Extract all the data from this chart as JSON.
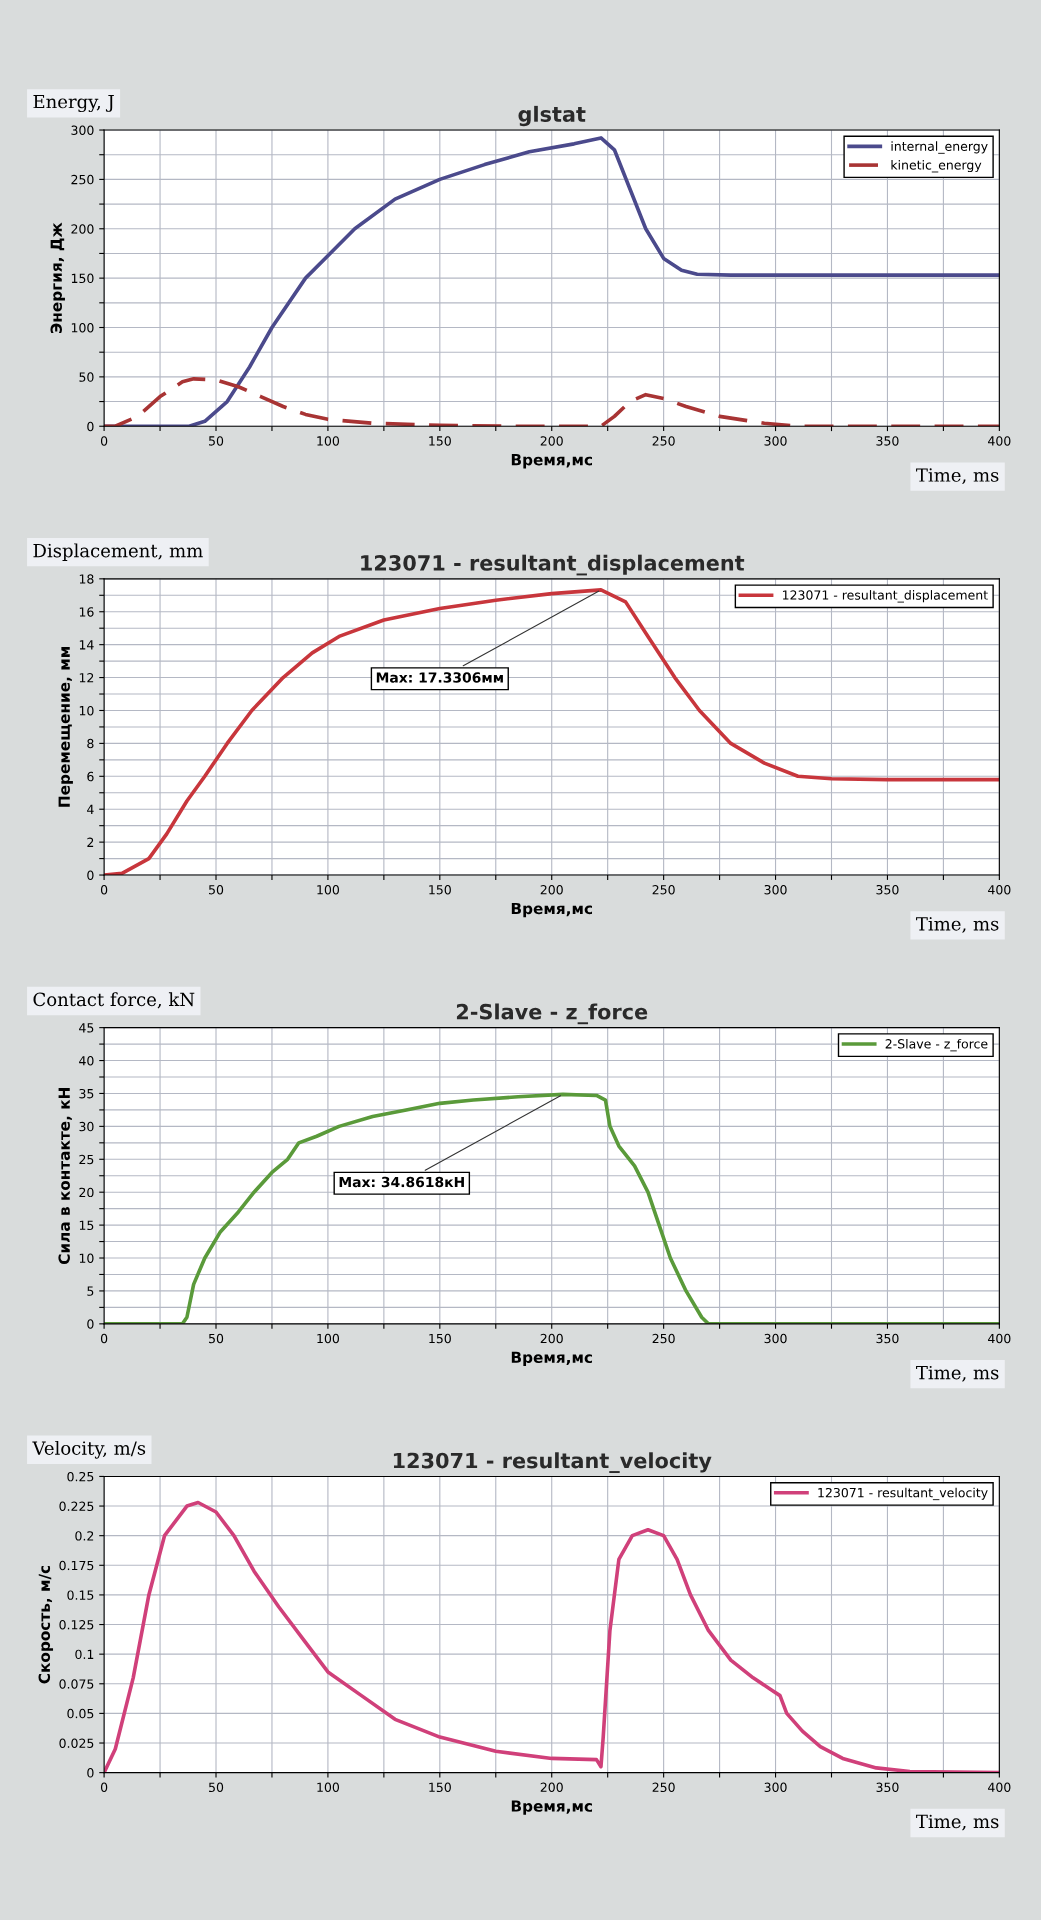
{
  "chart_data": [
    {
      "type": "line",
      "title": "glstat",
      "xlabel": "Время,мс",
      "ylabel": "Энергия, Дж",
      "annotations": [
        "Energy, J",
        "Time, ms"
      ],
      "x": [
        0,
        20,
        35,
        38,
        45,
        55,
        65,
        75,
        90,
        112,
        130,
        150,
        170,
        190,
        210,
        222,
        228,
        235,
        242,
        250,
        258,
        265,
        280,
        400
      ],
      "series": [
        {
          "name": "internal_energy",
          "color": "#4b4a8c",
          "line_style": "solid",
          "values": [
            0,
            0,
            0,
            0,
            5,
            25,
            60,
            100,
            150,
            200,
            230,
            250,
            265,
            278,
            286,
            292,
            280,
            240,
            200,
            170,
            158,
            154,
            153,
            153
          ]
        },
        {
          "name": "kinetic_energy",
          "color": "#a83434",
          "line_style": "dashed",
          "x": [
            0,
            5,
            15,
            25,
            35,
            40,
            50,
            60,
            70,
            80,
            90,
            100,
            120,
            150,
            180,
            222,
            228,
            235,
            242,
            250,
            260,
            275,
            295,
            310,
            400
          ],
          "values": [
            0,
            0,
            10,
            30,
            45,
            48,
            47,
            40,
            30,
            20,
            12,
            7,
            3,
            1,
            0,
            0,
            10,
            25,
            32,
            28,
            20,
            10,
            3,
            0,
            0
          ]
        }
      ],
      "xlim": [
        0,
        400
      ],
      "ylim": [
        0,
        300
      ],
      "xticks": [
        0,
        {
          "value": 25,
          "label": null
        },
        50,
        {
          "value": 75,
          "label": null
        },
        100,
        {
          "value": 125,
          "label": null
        },
        150,
        {
          "value": 175,
          "label": null
        },
        200,
        {
          "value": 225,
          "label": null
        },
        250,
        {
          "value": 275,
          "label": null
        },
        300,
        {
          "value": 325,
          "label": null
        },
        350,
        {
          "value": 375,
          "label": null
        },
        400
      ],
      "yticks": [
        0,
        {
          "value": 25,
          "label": null
        },
        50,
        {
          "value": 75,
          "label": null
        },
        100,
        {
          "value": 125,
          "label": null
        },
        150,
        {
          "value": 175,
          "label": null
        },
        200,
        {
          "value": 225,
          "label": null
        },
        250,
        {
          "value": 275,
          "label": null
        },
        300
      ],
      "grid": true,
      "legend": "top right"
    },
    {
      "type": "line",
      "title": "123071 - resultant_displacement",
      "xlabel": "Время,мс",
      "ylabel": "Перемещение, мм",
      "annotations": [
        "Displacement, mm",
        "Time, ms",
        {
          "text": "Max: 17.3306мм",
          "x": 222,
          "y": 17.3306
        }
      ],
      "x": [
        0,
        8,
        20,
        28,
        37,
        45,
        55,
        66,
        80,
        93,
        105,
        125,
        150,
        175,
        200,
        222,
        233,
        243,
        255,
        266,
        280,
        295,
        310,
        325,
        350,
        400
      ],
      "series": [
        {
          "name": "123071 - resultant_displacement",
          "color": "#c8363c",
          "line_style": "solid",
          "values": [
            0,
            0.1,
            1,
            2.5,
            4.5,
            6,
            8,
            10,
            12,
            13.5,
            14.5,
            15.5,
            16.2,
            16.7,
            17.1,
            17.3306,
            16.6,
            14.5,
            12,
            10,
            8,
            6.8,
            6,
            5.85,
            5.8,
            5.8
          ]
        }
      ],
      "xlim": [
        0,
        400
      ],
      "ylim": [
        0,
        18
      ],
      "xticks": [
        0,
        {
          "value": 25,
          "label": null
        },
        50,
        {
          "value": 75,
          "label": null
        },
        100,
        {
          "value": 125,
          "label": null
        },
        150,
        {
          "value": 175,
          "label": null
        },
        200,
        {
          "value": 225,
          "label": null
        },
        250,
        {
          "value": 275,
          "label": null
        },
        300,
        {
          "value": 325,
          "label": null
        },
        350,
        {
          "value": 375,
          "label": null
        },
        400
      ],
      "yticks": [
        0,
        {
          "value": 1,
          "label": null
        },
        2,
        {
          "value": 3,
          "label": null
        },
        4,
        {
          "value": 5,
          "label": null
        },
        6,
        {
          "value": 7,
          "label": null
        },
        8,
        {
          "value": 9,
          "label": null
        },
        10,
        {
          "value": 11,
          "label": null
        },
        12,
        {
          "value": 13,
          "label": null
        },
        14,
        {
          "value": 15,
          "label": null
        },
        16,
        {
          "value": 17,
          "label": null
        },
        18
      ],
      "grid": true,
      "legend": "top right"
    },
    {
      "type": "line",
      "title": "2-Slave - z_force",
      "xlabel": "Время,мс",
      "ylabel": "Сила в контакте, кН",
      "annotations": [
        "Contact force, kN",
        "Time, ms",
        {
          "text": "Max: 34.8618кН",
          "x": 205,
          "y": 34.8618
        }
      ],
      "x": [
        0,
        35,
        37,
        40,
        45,
        52,
        60,
        67,
        75,
        82,
        87,
        95,
        105,
        120,
        135,
        150,
        165,
        185,
        205,
        220,
        224,
        226,
        230,
        237,
        243,
        248,
        253,
        260,
        267,
        270,
        400
      ],
      "series": [
        {
          "name": "2-Slave - z_force",
          "color": "#5a9a3a",
          "line_style": "solid",
          "values": [
            0,
            0,
            1,
            6,
            10,
            14,
            17,
            20,
            23,
            25,
            27.5,
            28.5,
            30,
            31.5,
            32.5,
            33.5,
            34,
            34.5,
            34.8618,
            34.7,
            34,
            30,
            27,
            24,
            20,
            15,
            10,
            5,
            1,
            0,
            0
          ]
        }
      ],
      "xlim": [
        0,
        400
      ],
      "ylim": [
        0,
        45
      ],
      "xticks": [
        0,
        {
          "value": 25,
          "label": null
        },
        50,
        {
          "value": 75,
          "label": null
        },
        100,
        {
          "value": 125,
          "label": null
        },
        150,
        {
          "value": 175,
          "label": null
        },
        200,
        {
          "value": 225,
          "label": null
        },
        250,
        {
          "value": 275,
          "label": null
        },
        300,
        {
          "value": 325,
          "label": null
        },
        350,
        {
          "value": 375,
          "label": null
        },
        400
      ],
      "yticks": [
        0,
        {
          "value": 2.5,
          "label": null
        },
        5,
        {
          "value": 7.5,
          "label": null
        },
        10,
        {
          "value": 12.5,
          "label": null
        },
        15,
        {
          "value": 17.5,
          "label": null
        },
        20,
        {
          "value": 22.5,
          "label": null
        },
        25,
        {
          "value": 27.5,
          "label": null
        },
        30,
        {
          "value": 32.5,
          "label": null
        },
        35,
        {
          "value": 37.5,
          "label": null
        },
        40,
        {
          "value": 42.5,
          "label": null
        },
        45
      ],
      "grid": true,
      "legend": "top right"
    },
    {
      "type": "line",
      "title": "123071 - resultant_velocity",
      "xlabel": "Время,мс",
      "ylabel": "Скорость, м/с",
      "annotations": [
        "Velocity, m/s",
        "Time, ms"
      ],
      "x": [
        0,
        5,
        13,
        20,
        27,
        37,
        42,
        50,
        58,
        67,
        78,
        90,
        100,
        115,
        130,
        150,
        175,
        200,
        220,
        222,
        223,
        226,
        230,
        236,
        243,
        250,
        256,
        262,
        270,
        280,
        290,
        298,
        302,
        305,
        312,
        320,
        330,
        345,
        360,
        400
      ],
      "series": [
        {
          "name": "123071 - resultant_velocity",
          "color": "#d0407a",
          "line_style": "solid",
          "values": [
            0,
            0.02,
            0.08,
            0.15,
            0.2,
            0.225,
            0.228,
            0.22,
            0.2,
            0.17,
            0.14,
            0.11,
            0.085,
            0.065,
            0.045,
            0.03,
            0.018,
            0.012,
            0.011,
            0.005,
            0.03,
            0.12,
            0.18,
            0.2,
            0.205,
            0.2,
            0.18,
            0.15,
            0.12,
            0.095,
            0.08,
            0.07,
            0.065,
            0.05,
            0.035,
            0.022,
            0.012,
            0.004,
            0.001,
            0
          ]
        }
      ],
      "xlim": [
        0,
        400
      ],
      "ylim": [
        0,
        0.25
      ],
      "xticks": [
        0,
        {
          "value": 25,
          "label": null
        },
        50,
        {
          "value": 75,
          "label": null
        },
        100,
        {
          "value": 125,
          "label": null
        },
        150,
        {
          "value": 175,
          "label": null
        },
        200,
        {
          "value": 225,
          "label": null
        },
        250,
        {
          "value": 275,
          "label": null
        },
        300,
        {
          "value": 325,
          "label": null
        },
        350,
        {
          "value": 375,
          "label": null
        },
        400
      ],
      "yticks": [
        0,
        0.025,
        0.05,
        0.075,
        0.1,
        0.125,
        0.15,
        0.175,
        0.2,
        0.225,
        0.25
      ],
      "grid": true,
      "legend": "top right"
    }
  ]
}
